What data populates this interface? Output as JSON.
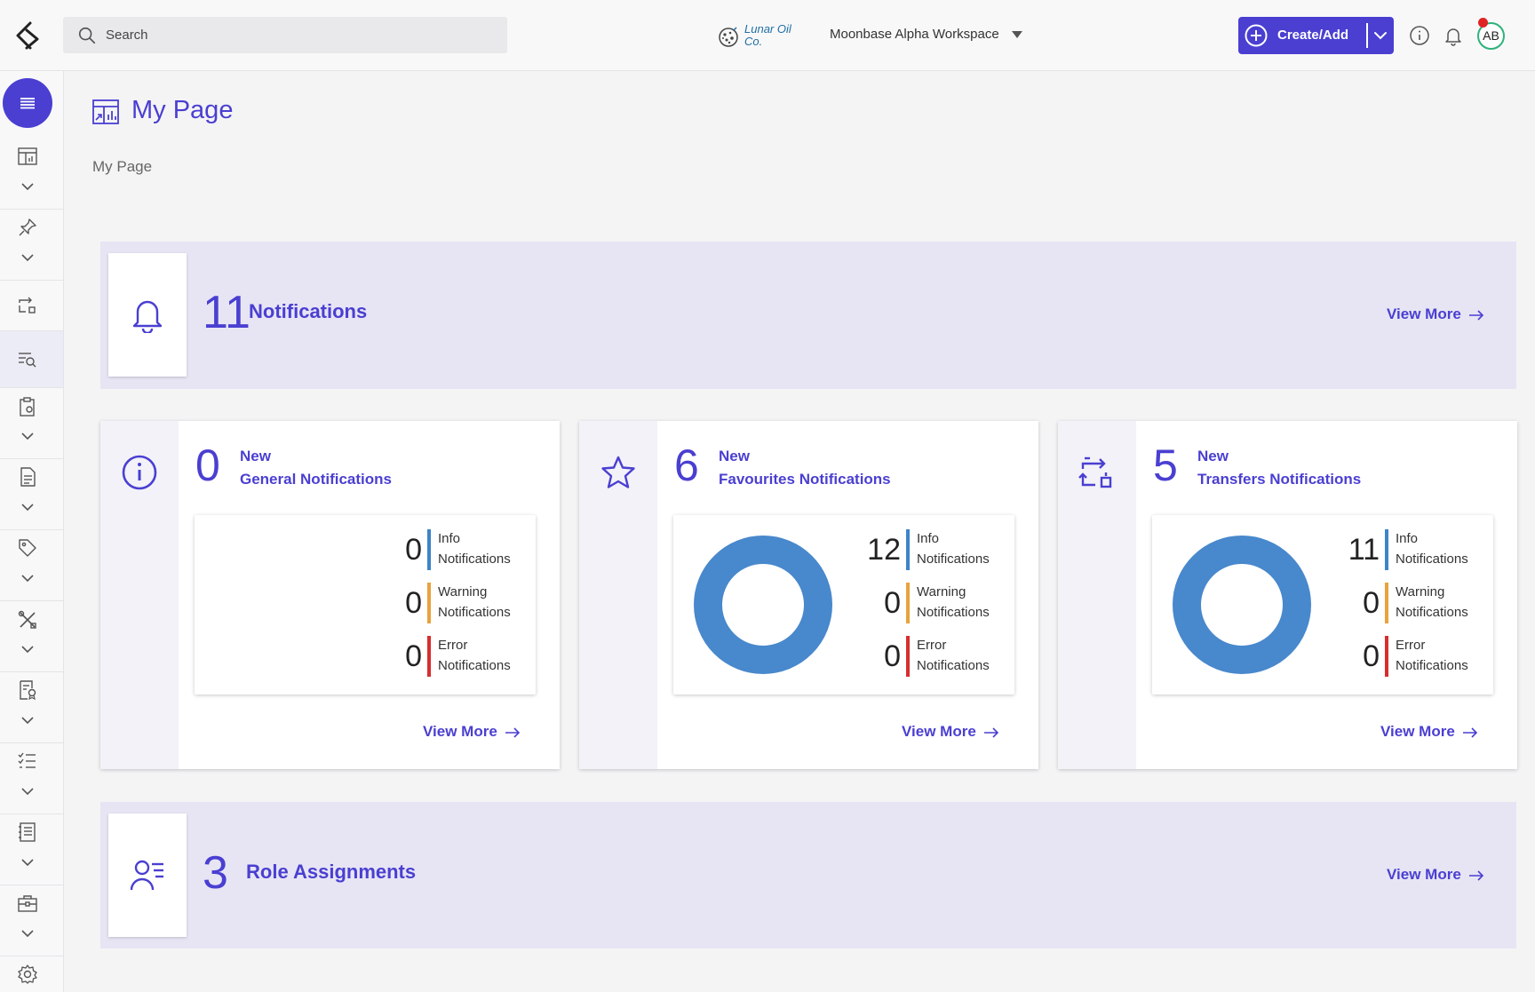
{
  "topbar": {
    "search_placeholder": "Search",
    "org_name": "Lunar Oil Co.",
    "workspace": "Moonbase Alpha Workspace",
    "create_label": "Create/Add",
    "avatar_initials": "AB"
  },
  "sidebar": {
    "items": [
      {
        "icon": "dashboard-icon",
        "expandable": true
      },
      {
        "icon": "pin-icon",
        "expandable": true
      },
      {
        "icon": "transfer-icon",
        "expandable": false
      },
      {
        "icon": "search-list-icon",
        "expandable": false,
        "active": true
      },
      {
        "icon": "clipboard-settings-icon",
        "expandable": true
      },
      {
        "icon": "document-icon",
        "expandable": true
      },
      {
        "icon": "tag-icon",
        "expandable": true
      },
      {
        "icon": "tools-icon",
        "expandable": true
      },
      {
        "icon": "document-badge-icon",
        "expandable": true
      },
      {
        "icon": "checklist-icon",
        "expandable": true
      },
      {
        "icon": "notebook-icon",
        "expandable": true
      },
      {
        "icon": "toolbox-icon",
        "expandable": true
      },
      {
        "icon": "gear-icon",
        "expandable": false
      }
    ]
  },
  "page": {
    "title": "My Page",
    "breadcrumb": "My Page"
  },
  "notifications_banner": {
    "count": "11",
    "label": "Notifications",
    "view_more": "View More"
  },
  "cards": [
    {
      "icon": "info-icon",
      "count": "0",
      "label_line1": "New",
      "label_line2": "General Notifications",
      "stats": [
        {
          "value": "0",
          "line1": "Info",
          "line2": "Notifications"
        },
        {
          "value": "0",
          "line1": "Warning",
          "line2": "Notifications"
        },
        {
          "value": "0",
          "line1": "Error",
          "line2": "Notifications"
        }
      ],
      "view_more": "View More"
    },
    {
      "icon": "star-icon",
      "count": "6",
      "label_line1": "New",
      "label_line2": "Favourites Notifications",
      "stats": [
        {
          "value": "12",
          "line1": "Info",
          "line2": "Notifications"
        },
        {
          "value": "0",
          "line1": "Warning",
          "line2": "Notifications"
        },
        {
          "value": "0",
          "line1": "Error",
          "line2": "Notifications"
        }
      ],
      "view_more": "View More"
    },
    {
      "icon": "transfer-icon",
      "count": "5",
      "label_line1": "New",
      "label_line2": "Transfers Notifications",
      "stats": [
        {
          "value": "11",
          "line1": "Info",
          "line2": "Notifications"
        },
        {
          "value": "0",
          "line1": "Warning",
          "line2": "Notifications"
        },
        {
          "value": "0",
          "line1": "Error",
          "line2": "Notifications"
        }
      ],
      "view_more": "View More"
    }
  ],
  "roles_banner": {
    "count": "3",
    "label": "Role Assignments",
    "view_more": "View More"
  },
  "colors": {
    "accent": "#4a3fd1",
    "info": "#3d84c9",
    "warning": "#e8a33d",
    "error": "#d62e2e",
    "donut": "#4888cc"
  }
}
